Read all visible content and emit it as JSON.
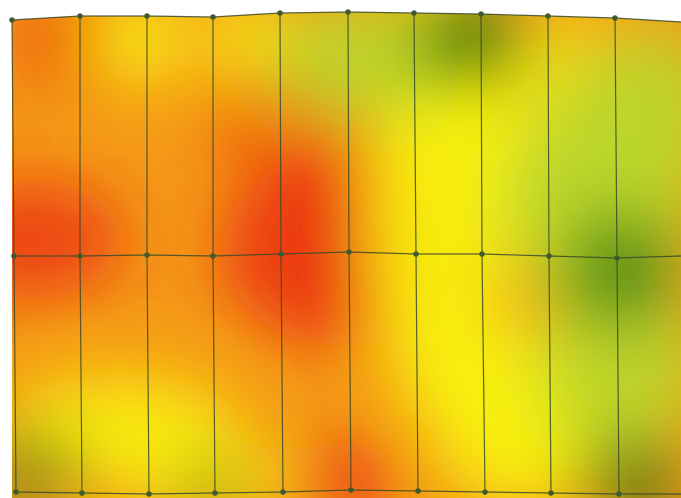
{
  "map": {
    "colors": {
      "red": "#ea2a0a",
      "orange": "#f59a18",
      "yellow": "#f8f20c",
      "lime": "#bcd62a",
      "green": "#1f6a0e",
      "grid_line": "#3a4a2a",
      "vertex": "#3f5a2c",
      "background": "#ffffff"
    },
    "grid": {
      "columns": 10,
      "rows": 2
    }
  }
}
